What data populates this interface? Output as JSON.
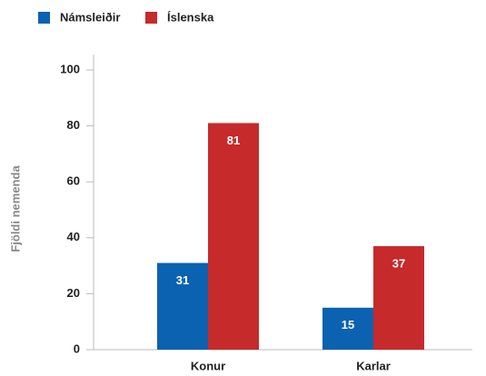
{
  "chart_data": {
    "type": "bar",
    "y_label": "Fjöldi nemenda",
    "categories": [
      "Konur",
      "Karlar"
    ],
    "series": [
      {
        "name": "Námsleiðir",
        "color": "#0b62b0",
        "values": [
          31,
          15
        ]
      },
      {
        "name": "Íslenska",
        "color": "#c62a2b",
        "values": [
          81,
          37
        ]
      }
    ],
    "ylim": [
      0,
      100
    ],
    "yticks": [
      0,
      20,
      40,
      60,
      80,
      100
    ],
    "grid": false,
    "legend": "top-left"
  }
}
